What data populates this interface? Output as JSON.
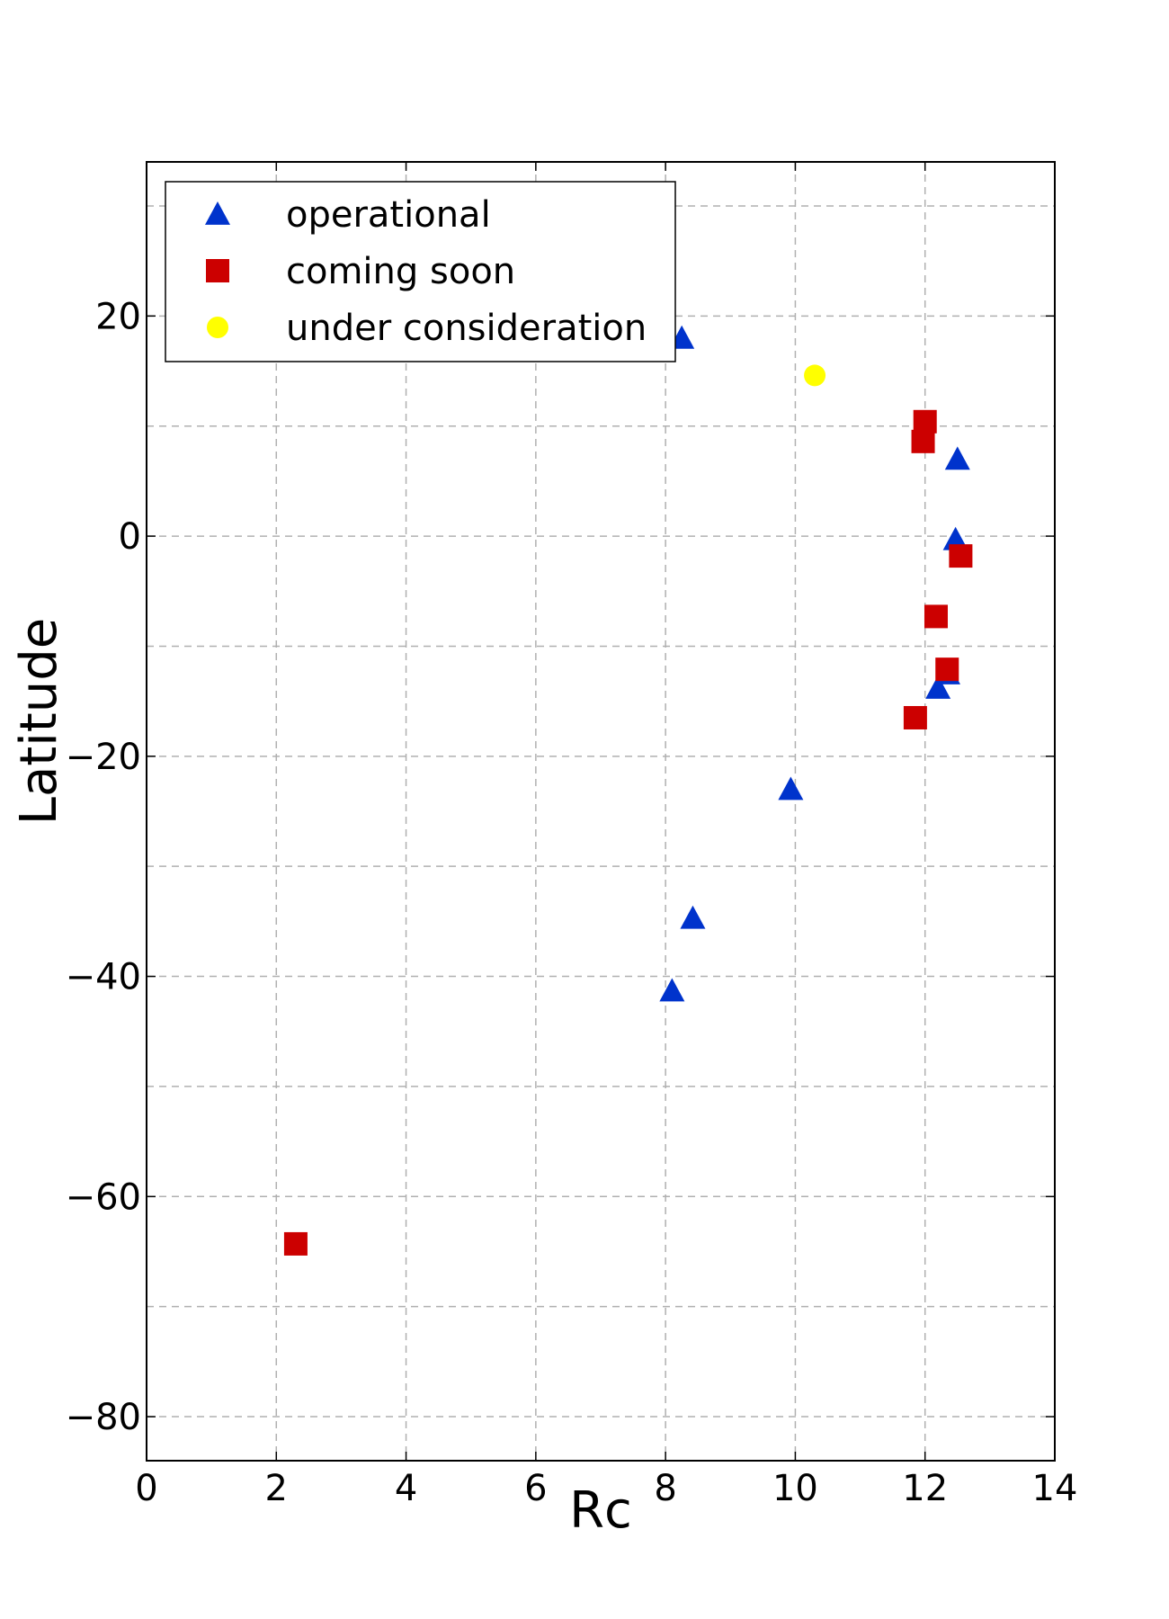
{
  "chart_data": {
    "type": "scatter",
    "title": "",
    "xlabel": "Rc",
    "ylabel": "Latitude",
    "xlim": [
      0,
      14
    ],
    "ylim": [
      -84,
      34
    ],
    "xticks": [
      0,
      2,
      4,
      6,
      8,
      10,
      12,
      14
    ],
    "yticks": [
      -80,
      -60,
      -40,
      -20,
      0,
      20
    ],
    "ytick_labels": [
      "−80",
      "−60",
      "−40",
      "−20",
      "0",
      "20"
    ],
    "grid": true,
    "legend_position": "top-left",
    "series": [
      {
        "name": "operational",
        "marker": "triangle",
        "color": "#0033cc",
        "points": [
          {
            "x": 8.25,
            "y": 18.0
          },
          {
            "x": 12.5,
            "y": 7.0
          },
          {
            "x": 12.47,
            "y": -0.3
          },
          {
            "x": 12.35,
            "y": -12.5
          },
          {
            "x": 12.2,
            "y": -13.8
          },
          {
            "x": 9.93,
            "y": -23.0
          },
          {
            "x": 8.42,
            "y": -34.7
          },
          {
            "x": 8.1,
            "y": -41.3
          }
        ]
      },
      {
        "name": "coming soon",
        "marker": "square",
        "color": "#cc0000",
        "points": [
          {
            "x": 12.0,
            "y": 10.4
          },
          {
            "x": 11.97,
            "y": 8.6
          },
          {
            "x": 12.55,
            "y": -1.8
          },
          {
            "x": 12.17,
            "y": -7.3
          },
          {
            "x": 12.34,
            "y": -12.1
          },
          {
            "x": 11.85,
            "y": -16.5
          },
          {
            "x": 2.3,
            "y": -64.3
          }
        ]
      },
      {
        "name": "under consideration",
        "marker": "circle",
        "color": "#ffff00",
        "points": [
          {
            "x": 10.3,
            "y": 14.6
          }
        ]
      }
    ]
  }
}
